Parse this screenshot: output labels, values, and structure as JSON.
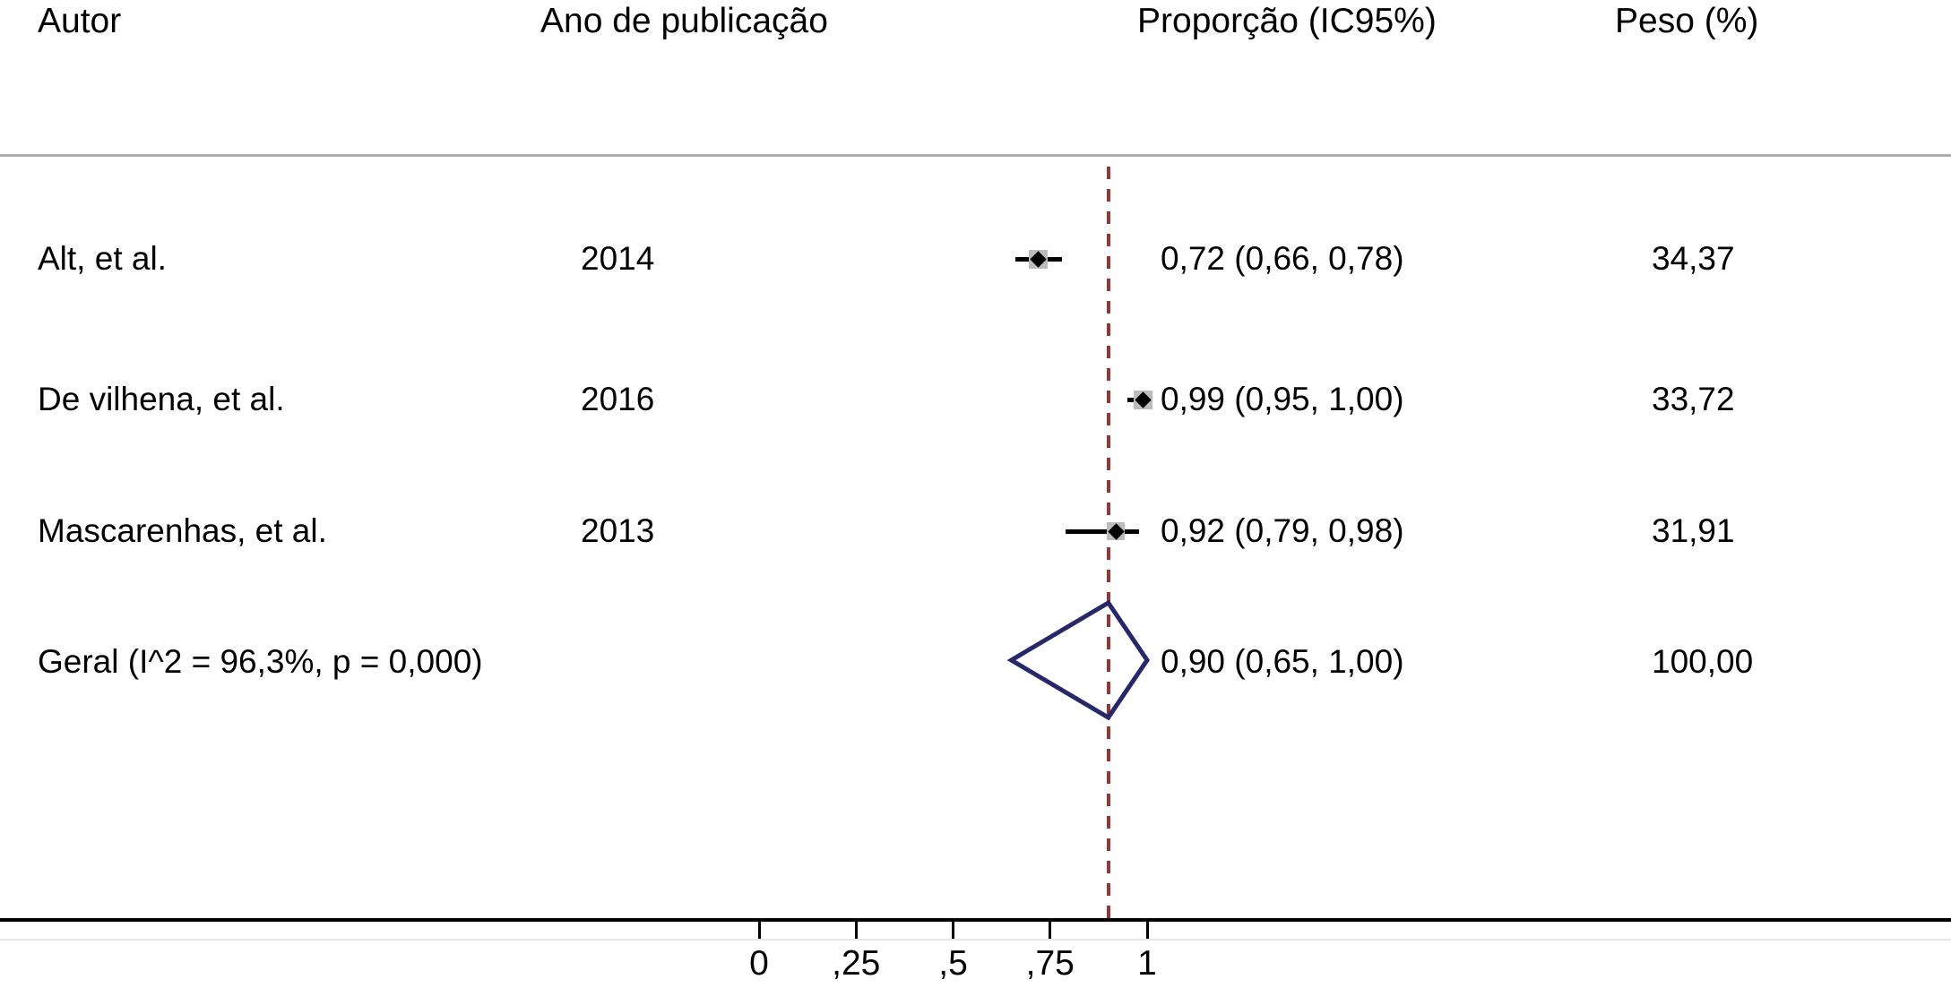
{
  "chart_data": {
    "type": "forest",
    "columns": {
      "author": "Autor",
      "year": "Ano de publicação",
      "proportion": "Proporção (IC95%)",
      "weight": "Peso (%)"
    },
    "studies": [
      {
        "author": "Alt, et al.",
        "year": "2014",
        "estimate": 0.72,
        "ci_low": 0.66,
        "ci_high": 0.78,
        "estimate_label": "0,72 (0,66, 0,78)",
        "weight": 34.37,
        "weight_label": "34,37"
      },
      {
        "author": "De vilhena, et al.",
        "year": "2016",
        "estimate": 0.99,
        "ci_low": 0.95,
        "ci_high": 1.0,
        "estimate_label": "0,99 (0,95, 1,00)",
        "weight": 33.72,
        "weight_label": "33,72"
      },
      {
        "author": "Mascarenhas, et al.",
        "year": "2013",
        "estimate": 0.92,
        "ci_low": 0.79,
        "ci_high": 0.98,
        "estimate_label": "0,92 (0,79, 0,98)",
        "weight": 31.91,
        "weight_label": "31,91"
      }
    ],
    "overall": {
      "label": "Geral (I^2 = 96,3%, p = 0,000)",
      "estimate": 0.9,
      "ci_low": 0.65,
      "ci_high": 1.0,
      "estimate_label": "0,90 (0,65, 1,00)",
      "weight": 100.0,
      "weight_label": "100,00"
    },
    "x_axis": {
      "range": [
        0,
        1
      ],
      "ticks": [
        {
          "value": 0,
          "label": "0"
        },
        {
          "value": 0.25,
          "label": ",25"
        },
        {
          "value": 0.5,
          "label": ",5"
        },
        {
          "value": 0.75,
          "label": ",75"
        },
        {
          "value": 1,
          "label": "1"
        }
      ]
    },
    "reference_line": {
      "value": 0.9,
      "style": "dashed"
    },
    "legend": null,
    "grid": false,
    "colors": {
      "reference_line": "#953735",
      "diamond": "#27276a",
      "weight_box": "#bcbcbc",
      "marker": "#000000",
      "axis": "#000000",
      "top_rule": "#adadad"
    }
  }
}
